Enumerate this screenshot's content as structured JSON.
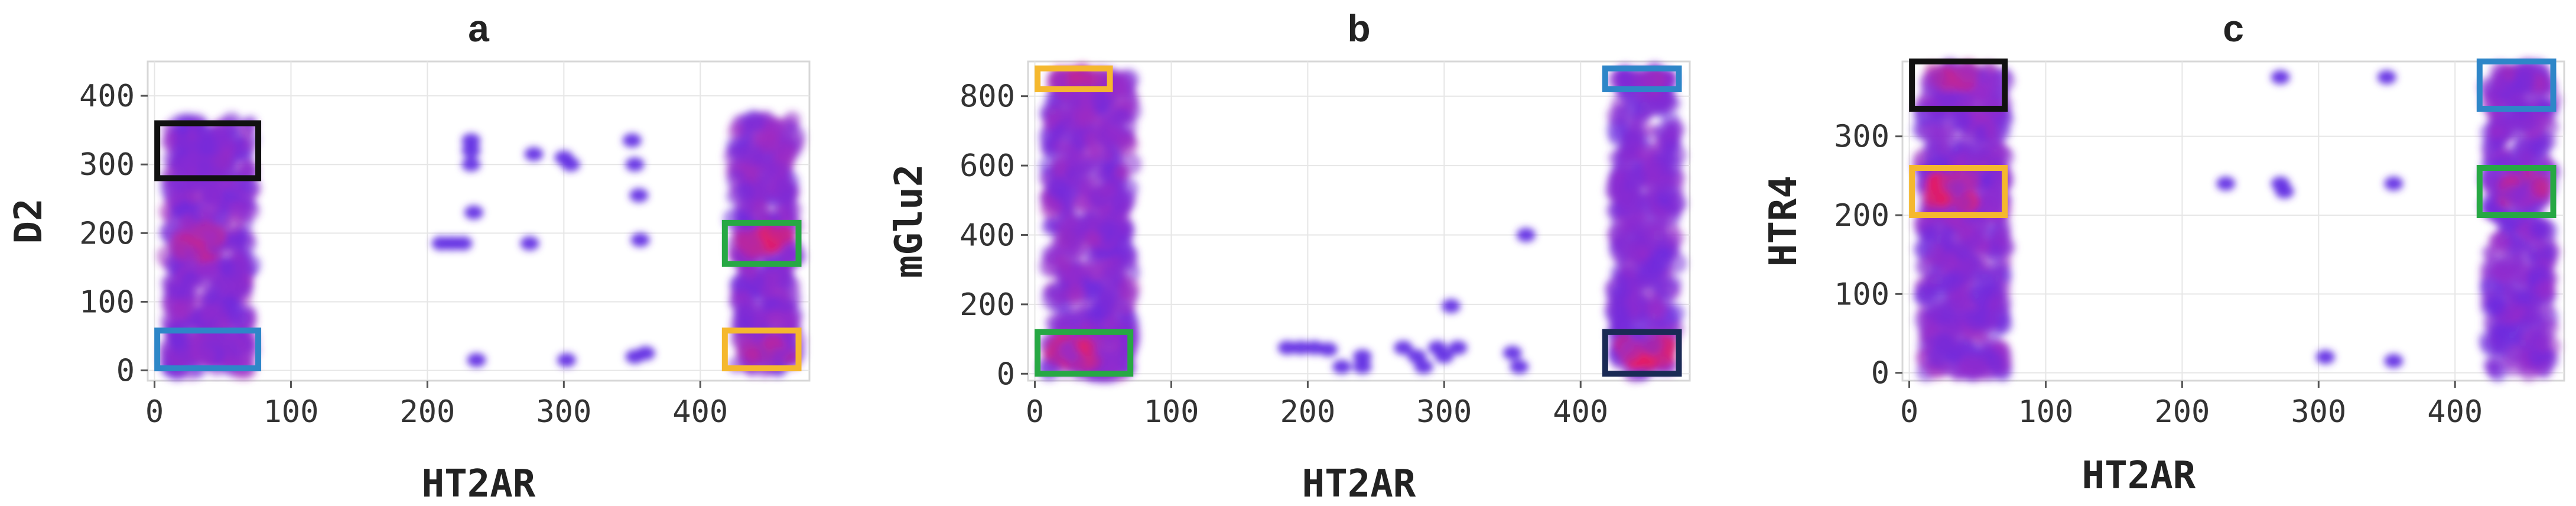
{
  "chart_data": [
    {
      "type": "scatter",
      "title": "a",
      "xlabel": "HT2AR",
      "ylabel": "D2",
      "xlim": [
        -5,
        480
      ],
      "ylim": [
        -15,
        450
      ],
      "xticks": [
        0,
        100,
        200,
        300,
        400
      ],
      "yticks": [
        0,
        100,
        200,
        300,
        400
      ],
      "grid": true,
      "clusters": [
        {
          "x": [
            10,
            70
          ],
          "y": [
            0,
            360
          ],
          "density": 0.55
        },
        {
          "x": [
            15,
            45
          ],
          "y": [
            170,
            205
          ],
          "density": 0.85
        },
        {
          "x": [
            20,
            55
          ],
          "y": [
            290,
            340
          ],
          "density": 0.6
        },
        {
          "x": [
            15,
            60
          ],
          "y": [
            20,
            50
          ],
          "density": 0.55
        },
        {
          "x": [
            425,
            470
          ],
          "y": [
            0,
            365
          ],
          "density": 0.55
        },
        {
          "x": [
            430,
            465
          ],
          "y": [
            175,
            200
          ],
          "density": 1.0
        },
        {
          "x": [
            430,
            465
          ],
          "y": [
            20,
            45
          ],
          "density": 0.8
        }
      ],
      "points": [
        {
          "x": 210,
          "y": 185
        },
        {
          "x": 218,
          "y": 185
        },
        {
          "x": 226,
          "y": 185
        },
        {
          "x": 232,
          "y": 320
        },
        {
          "x": 232,
          "y": 300
        },
        {
          "x": 232,
          "y": 335
        },
        {
          "x": 234,
          "y": 230
        },
        {
          "x": 236,
          "y": 15
        },
        {
          "x": 275,
          "y": 185
        },
        {
          "x": 278,
          "y": 315
        },
        {
          "x": 300,
          "y": 310
        },
        {
          "x": 305,
          "y": 300
        },
        {
          "x": 302,
          "y": 15
        },
        {
          "x": 350,
          "y": 335
        },
        {
          "x": 352,
          "y": 300
        },
        {
          "x": 355,
          "y": 255
        },
        {
          "x": 356,
          "y": 190
        },
        {
          "x": 352,
          "y": 20
        },
        {
          "x": 360,
          "y": 25
        }
      ],
      "boxes": [
        {
          "color": "#111111",
          "x": [
            2,
            76
          ],
          "y": [
            280,
            360
          ]
        },
        {
          "color": "#2e86c8",
          "x": [
            2,
            76
          ],
          "y": [
            3,
            58
          ]
        },
        {
          "color": "#27a844",
          "x": [
            418,
            472
          ],
          "y": [
            155,
            215
          ]
        },
        {
          "color": "#f5b82e",
          "x": [
            418,
            472
          ],
          "y": [
            3,
            58
          ]
        }
      ]
    },
    {
      "type": "scatter",
      "title": "b",
      "xlabel": "HT2AR",
      "ylabel": "mGlu2",
      "xlim": [
        -5,
        480
      ],
      "ylim": [
        -20,
        900
      ],
      "xticks": [
        0,
        100,
        200,
        300,
        400
      ],
      "yticks": [
        0,
        200,
        400,
        600,
        800
      ],
      "grid": true,
      "clusters": [
        {
          "x": [
            10,
            70
          ],
          "y": [
            0,
            860
          ],
          "density": 0.55
        },
        {
          "x": [
            15,
            45
          ],
          "y": [
            30,
            100
          ],
          "density": 1.0
        },
        {
          "x": [
            15,
            45
          ],
          "y": [
            840,
            865
          ],
          "density": 0.8
        },
        {
          "x": [
            20,
            55
          ],
          "y": [
            380,
            420
          ],
          "density": 0.65
        },
        {
          "x": [
            425,
            470
          ],
          "y": [
            0,
            870
          ],
          "density": 0.5
        },
        {
          "x": [
            430,
            465
          ],
          "y": [
            30,
            90
          ],
          "density": 1.0
        },
        {
          "x": [
            430,
            465
          ],
          "y": [
            845,
            865
          ],
          "density": 0.6
        }
      ],
      "points": [
        {
          "x": 185,
          "y": 75
        },
        {
          "x": 195,
          "y": 75
        },
        {
          "x": 205,
          "y": 75
        },
        {
          "x": 215,
          "y": 70
        },
        {
          "x": 225,
          "y": 20
        },
        {
          "x": 240,
          "y": 20
        },
        {
          "x": 270,
          "y": 75
        },
        {
          "x": 280,
          "y": 50
        },
        {
          "x": 285,
          "y": 20
        },
        {
          "x": 295,
          "y": 75
        },
        {
          "x": 300,
          "y": 50
        },
        {
          "x": 305,
          "y": 195
        },
        {
          "x": 310,
          "y": 75
        },
        {
          "x": 350,
          "y": 60
        },
        {
          "x": 355,
          "y": 20
        },
        {
          "x": 360,
          "y": 400
        },
        {
          "x": 240,
          "y": 50
        }
      ],
      "boxes": [
        {
          "color": "#f5b82e",
          "x": [
            2,
            55
          ],
          "y": [
            820,
            880
          ]
        },
        {
          "color": "#2e86c8",
          "x": [
            418,
            472
          ],
          "y": [
            820,
            880
          ]
        },
        {
          "color": "#27a844",
          "x": [
            2,
            70
          ],
          "y": [
            0,
            120
          ]
        },
        {
          "color": "#1a2a55",
          "x": [
            418,
            472
          ],
          "y": [
            0,
            120
          ]
        }
      ]
    },
    {
      "type": "scatter",
      "title": "c",
      "xlabel": "HT2AR",
      "ylabel": "HTR4",
      "xlim": [
        -5,
        480
      ],
      "ylim": [
        -10,
        395
      ],
      "xticks": [
        0,
        100,
        200,
        300,
        400
      ],
      "yticks": [
        0,
        100,
        200,
        300
      ],
      "grid": true,
      "clusters": [
        {
          "x": [
            10,
            70
          ],
          "y": [
            0,
            385
          ],
          "density": 0.55
        },
        {
          "x": [
            15,
            45
          ],
          "y": [
            215,
            245
          ],
          "density": 1.0
        },
        {
          "x": [
            15,
            45
          ],
          "y": [
            365,
            385
          ],
          "density": 0.85
        },
        {
          "x": [
            425,
            470
          ],
          "y": [
            0,
            385
          ],
          "density": 0.5
        },
        {
          "x": [
            430,
            465
          ],
          "y": [
            220,
            250
          ],
          "density": 0.85
        },
        {
          "x": [
            430,
            465
          ],
          "y": [
            365,
            385
          ],
          "density": 0.6
        }
      ],
      "points": [
        {
          "x": 232,
          "y": 240
        },
        {
          "x": 272,
          "y": 240
        },
        {
          "x": 275,
          "y": 230
        },
        {
          "x": 272,
          "y": 375
        },
        {
          "x": 305,
          "y": 20
        },
        {
          "x": 350,
          "y": 375
        },
        {
          "x": 355,
          "y": 240
        },
        {
          "x": 355,
          "y": 15
        }
      ],
      "boxes": [
        {
          "color": "#111111",
          "x": [
            2,
            70
          ],
          "y": [
            335,
            395
          ]
        },
        {
          "color": "#f5b82e",
          "x": [
            2,
            70
          ],
          "y": [
            200,
            260
          ]
        },
        {
          "color": "#2e86c8",
          "x": [
            418,
            472
          ],
          "y": [
            335,
            395
          ]
        },
        {
          "color": "#27a844",
          "x": [
            418,
            472
          ],
          "y": [
            200,
            260
          ]
        }
      ]
    }
  ],
  "colors": {
    "low": "#4a2ef0",
    "mid": "#9c2ec8",
    "high": "#ff1a40"
  }
}
